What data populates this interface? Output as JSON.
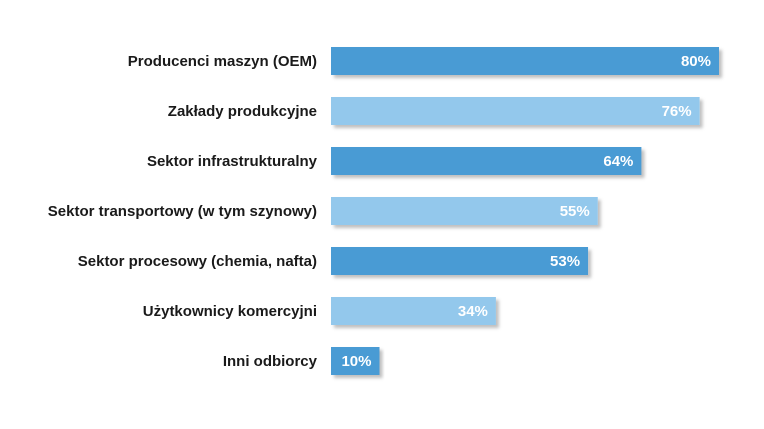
{
  "chart_data": {
    "type": "bar",
    "orientation": "horizontal",
    "categories": [
      "Producenci maszyn (OEM)",
      "Zakłady produkcyjne",
      "Sektor infrastrukturalny",
      "Sektor transportowy (w tym szynowy)",
      "Sektor procesowy (chemia, nafta)",
      "Użytkownicy komercyjni",
      "Inni odbiorcy"
    ],
    "values": [
      80,
      76,
      64,
      55,
      53,
      34,
      10
    ],
    "value_labels": [
      "80%",
      "76%",
      "64%",
      "55%",
      "53%",
      "34%",
      "10%"
    ],
    "xlim": [
      0,
      80
    ],
    "grid": false,
    "legend": "none",
    "bar_colors": [
      "#4a9bd4",
      "#93c8ec"
    ],
    "title": "",
    "xlabel": "",
    "ylabel": ""
  }
}
